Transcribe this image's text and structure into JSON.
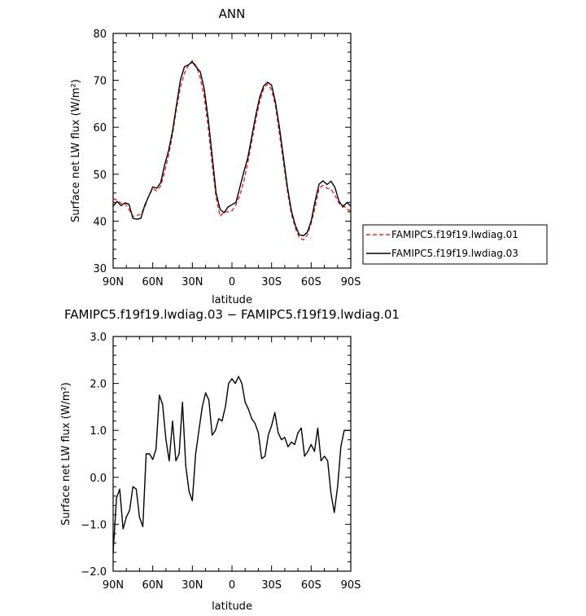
{
  "chart_data": [
    {
      "type": "line",
      "title": "ANN",
      "xlabel": "latitude",
      "ylabel": "Surface net LW flux (W/m²)",
      "xlim": [
        90,
        -90
      ],
      "ylim": [
        30,
        80
      ],
      "x_ticks": [
        90,
        60,
        30,
        0,
        -30,
        -60,
        -90
      ],
      "x_tick_labels": [
        "90N",
        "60N",
        "30N",
        "0",
        "30S",
        "60S",
        "90S"
      ],
      "y_ticks": [
        30,
        40,
        50,
        60,
        70,
        80
      ],
      "y_tick_labels": [
        "30",
        "40",
        "50",
        "60",
        "70",
        "80"
      ],
      "legend_position": "right",
      "series": [
        {
          "name": "FAMIPC5.f19f19.lwdiag.01",
          "color": "#e8231f",
          "dash": "dashed",
          "x": [
            90,
            87,
            84,
            81,
            78,
            75,
            72,
            69,
            66,
            63,
            60,
            57,
            54,
            51,
            48,
            45,
            42,
            39,
            36,
            33,
            30,
            27,
            24,
            21,
            18,
            15,
            12,
            9,
            6,
            3,
            0,
            -3,
            -6,
            -9,
            -12,
            -15,
            -18,
            -21,
            -24,
            -27,
            -30,
            -33,
            -36,
            -39,
            -42,
            -45,
            -48,
            -51,
            -54,
            -57,
            -60,
            -63,
            -66,
            -69,
            -72,
            -75,
            -78,
            -81,
            -84,
            -87,
            -90
          ],
          "y": [
            44.8,
            44.5,
            43.8,
            43.8,
            42.5,
            41.0,
            41.2,
            41.5,
            43.0,
            45.5,
            46.8,
            46.5,
            47.5,
            50.5,
            54.0,
            58.5,
            64.0,
            68.5,
            71.5,
            73.2,
            74.2,
            73.0,
            70.5,
            66.5,
            60.0,
            52.0,
            45.0,
            41.0,
            42.0,
            42.0,
            42.2,
            43.5,
            45.5,
            48.5,
            52.5,
            57.0,
            61.5,
            65.5,
            68.2,
            69.2,
            68.0,
            64.5,
            58.5,
            52.5,
            46.5,
            41.5,
            38.5,
            36.5,
            36.0,
            37.0,
            39.5,
            43.0,
            47.0,
            47.6,
            47.0,
            46.8,
            45.5,
            43.8,
            43.5,
            42.5,
            42.2
          ]
        },
        {
          "name": "FAMIPC5.f19f19.lwdiag.03",
          "color": "#000000",
          "dash": "solid",
          "x": [
            90,
            87,
            84,
            81,
            78,
            75,
            72,
            69,
            66,
            63,
            60,
            57,
            54,
            51,
            48,
            45,
            42,
            39,
            36,
            33,
            30,
            27,
            24,
            21,
            18,
            15,
            12,
            9,
            6,
            3,
            0,
            -3,
            -6,
            -9,
            -12,
            -15,
            -18,
            -21,
            -24,
            -27,
            -30,
            -33,
            -36,
            -39,
            -42,
            -45,
            -48,
            -51,
            -54,
            -57,
            -60,
            -63,
            -66,
            -69,
            -72,
            -75,
            -78,
            -81,
            -84,
            -87,
            -90
          ],
          "y": [
            43.2,
            44.2,
            43.3,
            43.9,
            43.6,
            40.6,
            40.4,
            40.6,
            43.4,
            45.3,
            47.3,
            47.0,
            48.2,
            52.0,
            55.0,
            59.2,
            64.8,
            70.1,
            72.9,
            73.3,
            73.9,
            72.8,
            71.8,
            68.2,
            61.8,
            53.9,
            46.0,
            42.5,
            41.8,
            43.0,
            43.5,
            44.0,
            47.2,
            50.5,
            53.5,
            58.0,
            62.5,
            66.4,
            68.8,
            69.6,
            69.0,
            65.3,
            59.9,
            53.6,
            47.3,
            42.2,
            39.1,
            37.1,
            36.9,
            37.6,
            40.0,
            44.3,
            47.9,
            48.6,
            47.8,
            48.5,
            47.2,
            44.3,
            43.0,
            44.0,
            43.2
          ]
        }
      ]
    },
    {
      "type": "line",
      "title": "FAMIPC5.f19f19.lwdiag.03 − FAMIPC5.f19f19.lwdiag.01",
      "xlabel": "latitude",
      "ylabel": "Surface net LW flux (W/m²)",
      "xlim": [
        90,
        -90
      ],
      "ylim": [
        -2.0,
        3.0
      ],
      "x_ticks": [
        90,
        60,
        30,
        0,
        -30,
        -60,
        -90
      ],
      "x_tick_labels": [
        "90N",
        "60N",
        "30N",
        "0",
        "30S",
        "60S",
        "90S"
      ],
      "y_ticks": [
        -2.0,
        -1.0,
        0.0,
        1.0,
        2.0,
        3.0
      ],
      "y_tick_labels": [
        "−2.0",
        "−1.0",
        "0.0",
        "1.0",
        "2.0",
        "3.0"
      ],
      "series": [
        {
          "color": "#000000",
          "x": [
            90,
            87.5,
            85,
            82.5,
            80,
            77.5,
            75,
            72.5,
            70,
            67.5,
            65,
            62.5,
            60,
            57.5,
            55,
            52.5,
            50,
            47.5,
            45,
            42.5,
            40,
            37.5,
            35,
            32.5,
            30,
            27.5,
            25,
            22.5,
            20,
            17.5,
            15,
            12.5,
            10,
            7.5,
            5,
            2.5,
            0,
            -2.5,
            -5,
            -7.5,
            -10,
            -12.5,
            -15,
            -17.5,
            -20,
            -22.5,
            -25,
            -27.5,
            -30,
            -32.5,
            -35,
            -37.5,
            -40,
            -42.5,
            -45,
            -47.5,
            -50,
            -52.5,
            -55,
            -57.5,
            -60,
            -62.5,
            -65,
            -67.5,
            -70,
            -72.5,
            -75,
            -77.5,
            -80,
            -82.5,
            -85,
            -87.5,
            -90
          ],
          "y": [
            -1.6,
            -0.45,
            -0.25,
            -1.1,
            -0.85,
            -0.7,
            -0.2,
            -0.25,
            -0.85,
            -1.05,
            0.5,
            0.5,
            0.38,
            0.6,
            1.75,
            1.55,
            0.8,
            0.35,
            1.2,
            0.35,
            0.5,
            1.6,
            0.25,
            -0.3,
            -0.5,
            0.5,
            1.0,
            1.5,
            1.8,
            1.65,
            0.9,
            1.0,
            1.25,
            1.2,
            1.5,
            2.0,
            2.1,
            2.0,
            2.15,
            2.0,
            1.6,
            1.45,
            1.25,
            1.15,
            0.95,
            0.4,
            0.45,
            0.9,
            1.1,
            1.38,
            0.95,
            0.8,
            0.85,
            0.65,
            0.75,
            0.7,
            0.95,
            1.05,
            0.45,
            0.55,
            0.7,
            0.55,
            1.05,
            0.35,
            0.45,
            0.35,
            -0.35,
            -0.75,
            -0.2,
            0.65,
            1.0,
            1.0,
            1.0
          ]
        }
      ]
    }
  ]
}
